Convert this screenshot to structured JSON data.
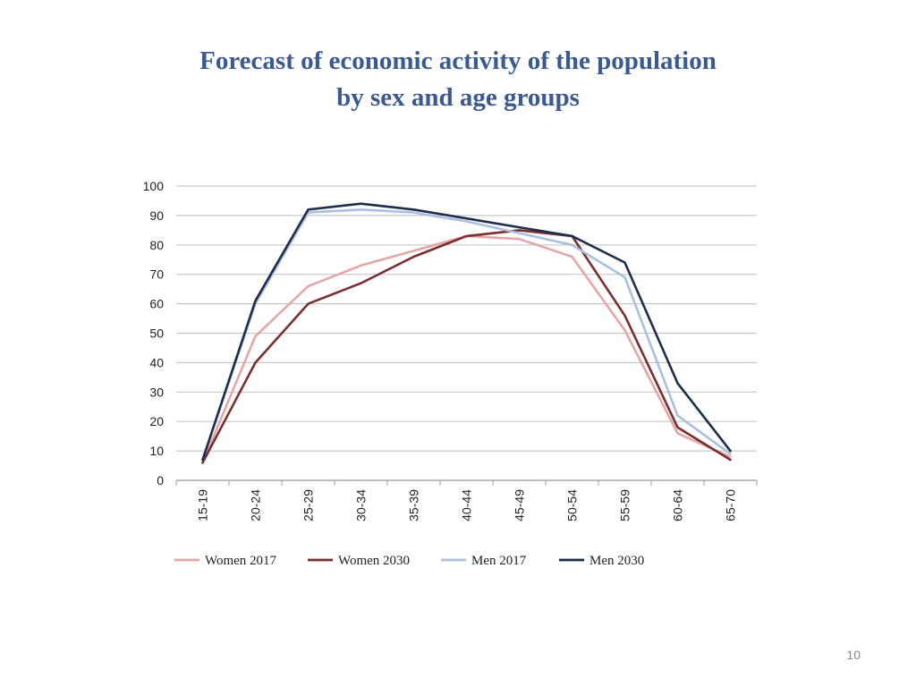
{
  "slide": {
    "title_line1": "Forecast of economic activity of the population",
    "title_line2": "by sex and age groups",
    "page_number": "10"
  },
  "chart_data": {
    "type": "line",
    "title": "",
    "xlabel": "",
    "ylabel": "",
    "categories": [
      "15-19",
      "20-24",
      "25-29",
      "30-34",
      "35-39",
      "40-44",
      "45-49",
      "50-54",
      "55-59",
      "60-64",
      "65-70"
    ],
    "ylim": [
      0,
      100
    ],
    "yticks": [
      0,
      10,
      20,
      30,
      40,
      50,
      60,
      70,
      80,
      90,
      100
    ],
    "grid": true,
    "legend_position": "bottom",
    "series": [
      {
        "name": "Women 2017",
        "color": "#e4a6a6",
        "values": [
          6,
          49,
          66,
          73,
          78,
          83,
          82,
          76,
          51,
          16,
          8
        ]
      },
      {
        "name": "Women 2030",
        "color": "#7a2e2e",
        "values": [
          6,
          40,
          60,
          67,
          76,
          83,
          85,
          83,
          56,
          18,
          7
        ]
      },
      {
        "name": "Men 2017",
        "color": "#a9c0e0",
        "values": [
          7,
          60,
          91,
          92,
          91,
          88,
          84,
          80,
          69,
          22,
          9
        ]
      },
      {
        "name": "Men 2030",
        "color": "#1c2e4a",
        "values": [
          7,
          61,
          92,
          94,
          92,
          89,
          86,
          83,
          74,
          33,
          10
        ]
      }
    ]
  }
}
